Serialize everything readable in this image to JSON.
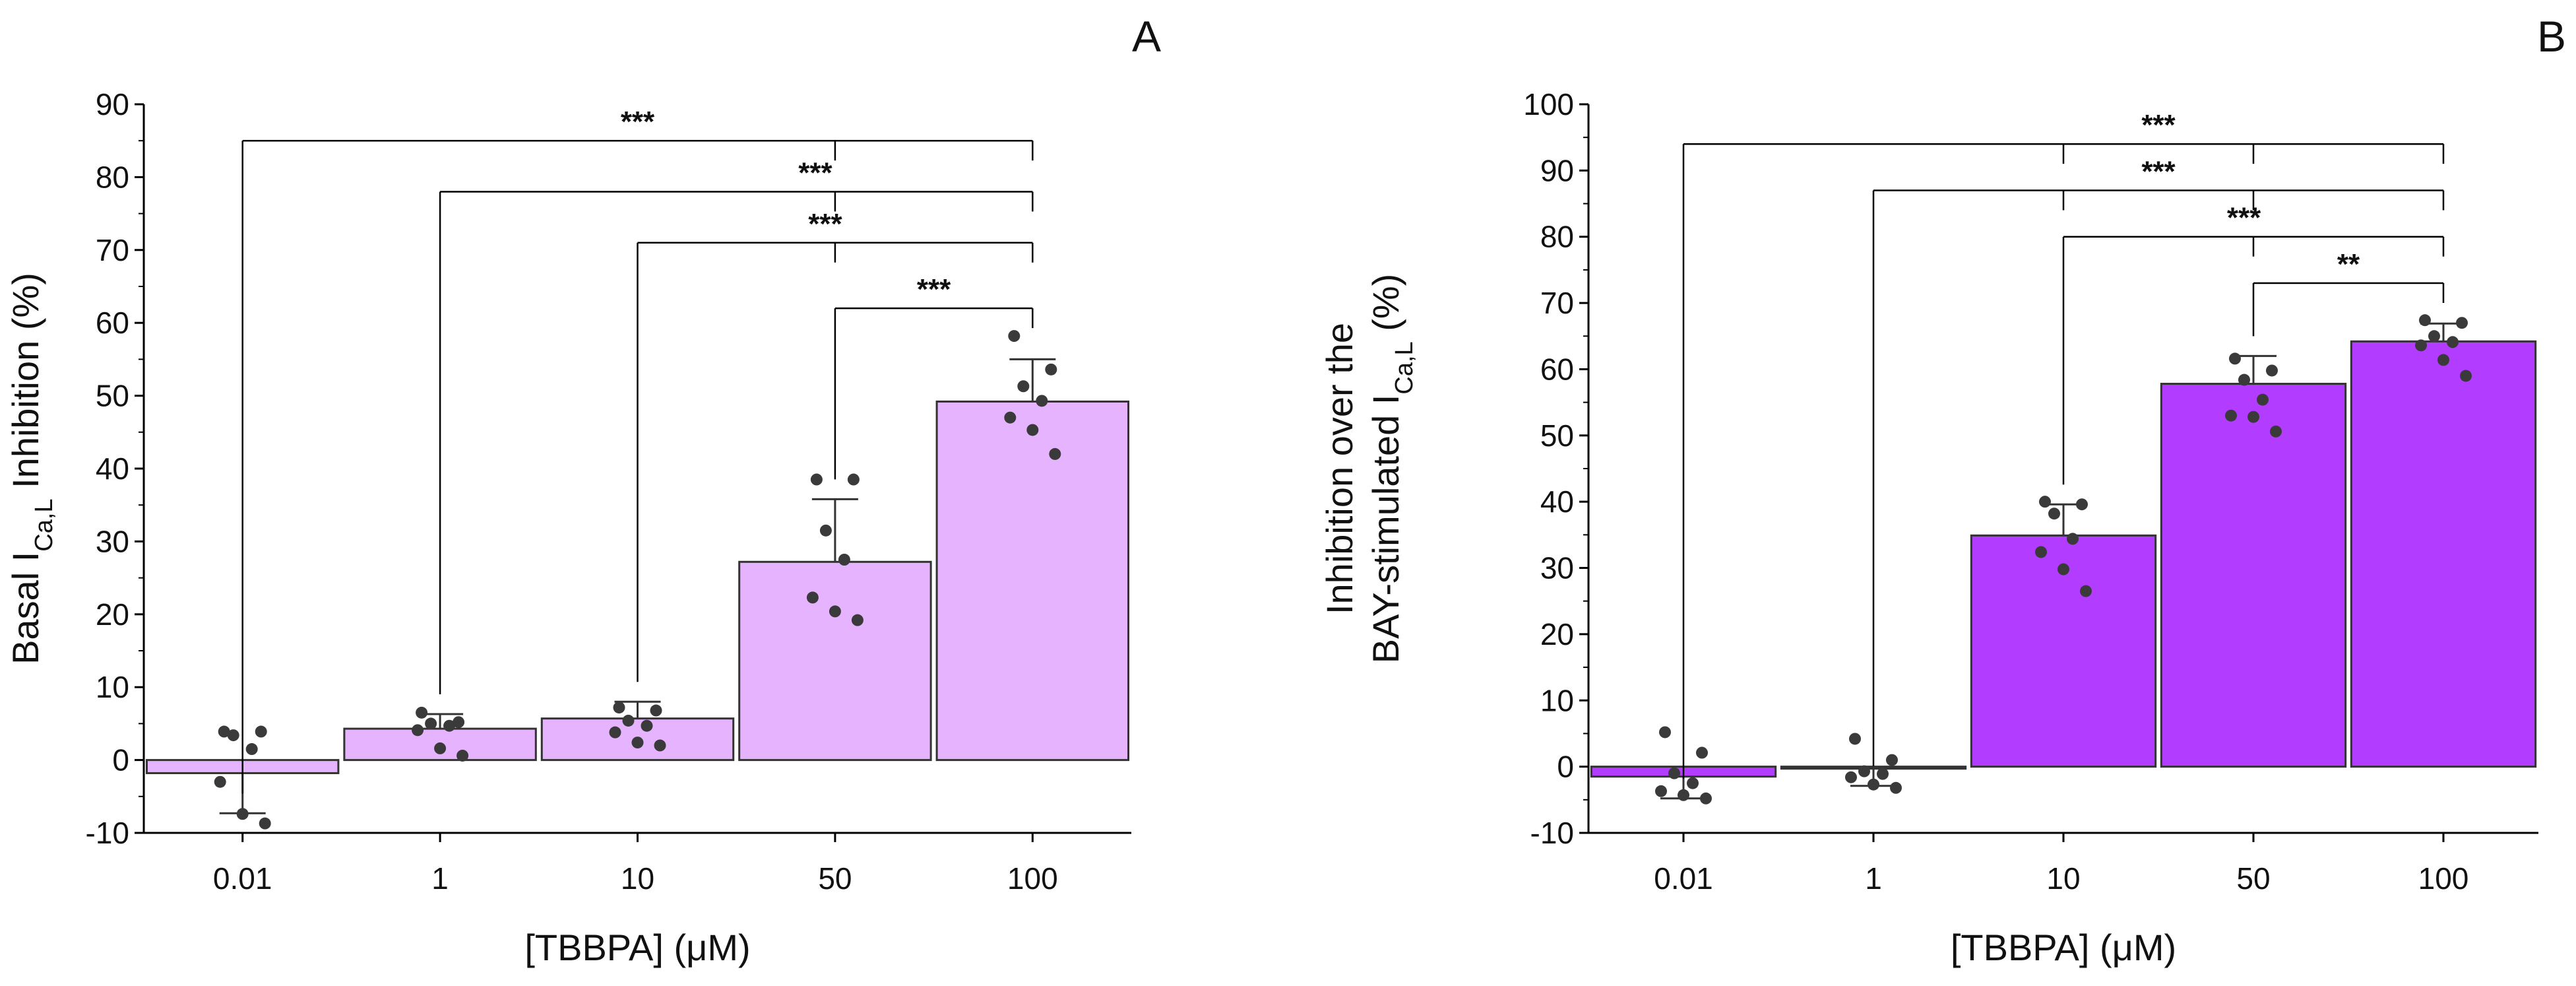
{
  "chart_data": [
    {
      "panel": "A",
      "type": "bar",
      "categories": [
        "0.01",
        "1",
        "10",
        "50",
        "100"
      ],
      "values": [
        -1.8,
        4.3,
        5.7,
        27.2,
        49.2
      ],
      "error_plus": [
        -7.3,
        6.3,
        8.0,
        35.8,
        55.0
      ],
      "points": [
        [
          3.9,
          3.9,
          3.4,
          1.5,
          -3.0,
          -7.4,
          -8.7
        ],
        [
          6.5,
          5.2,
          5.0,
          4.7,
          4.1,
          1.6,
          0.6
        ],
        [
          7.2,
          6.8,
          5.4,
          4.7,
          3.8,
          2.4,
          2.0
        ],
        [
          38.5,
          38.5,
          31.5,
          27.5,
          22.3,
          20.4,
          19.2
        ],
        [
          58.2,
          53.6,
          51.3,
          49.3,
          47.0,
          45.3,
          42.0
        ]
      ],
      "xlabel": "[TBBPA] (μM)",
      "ylabel": "Basal I",
      "ylabel_sub": "Ca,L",
      "ylabel_tail": " Inhibition (%)",
      "ylim": [
        -10,
        90
      ],
      "yticks": [
        "-10",
        "0",
        "10",
        "20",
        "30",
        "40",
        "50",
        "60",
        "70",
        "80",
        "90"
      ],
      "bar_color": "#e6b3ff",
      "significance": [
        {
          "from": 0,
          "to": 4,
          "mid": 3,
          "y": 85,
          "label": "***"
        },
        {
          "from": 1,
          "to": 4,
          "mid": 3,
          "y": 78,
          "label": "***"
        },
        {
          "from": 2,
          "to": 4,
          "mid": 3,
          "y": 71,
          "label": "***"
        },
        {
          "from": 3,
          "to": 4,
          "y": 62,
          "label": "***"
        }
      ]
    },
    {
      "panel": "B",
      "type": "bar",
      "categories": [
        "0.01",
        "1",
        "10",
        "50",
        "100"
      ],
      "values": [
        -1.5,
        -0.3,
        34.9,
        57.8,
        64.2
      ],
      "error_plus": [
        -4.8,
        -2.9,
        39.6,
        62.0,
        66.9
      ],
      "points": [
        [
          5.2,
          2.1,
          -1.0,
          -2.5,
          -3.7,
          -4.3,
          -4.8
        ],
        [
          4.2,
          1.0,
          -0.7,
          -1.1,
          -1.6,
          -2.7,
          -3.2
        ],
        [
          40.0,
          39.6,
          38.2,
          34.4,
          32.4,
          29.8,
          26.5
        ],
        [
          61.6,
          59.8,
          58.4,
          55.4,
          53.0,
          52.8,
          50.6
        ],
        [
          67.4,
          67.0,
          65.0,
          64.1,
          63.6,
          61.4,
          59.0
        ]
      ],
      "xlabel": "[TBBPA] (μM)",
      "ylabel_line1": "Inhibition over the",
      "ylabel_line2": "BAY-stimulated I",
      "ylabel_sub": "Ca,L",
      "ylabel_tail": " (%)",
      "ylim": [
        -10,
        100
      ],
      "yticks": [
        "-10",
        "0",
        "10",
        "20",
        "30",
        "40",
        "50",
        "60",
        "70",
        "80",
        "90",
        "100"
      ],
      "bar_color": "#b23cff",
      "significance": [
        {
          "from": 0,
          "to": 4,
          "mids": [
            2,
            3
          ],
          "y": 94,
          "label": "***"
        },
        {
          "from": 1,
          "to": 4,
          "mids": [
            2,
            3
          ],
          "y": 87,
          "label": "***"
        },
        {
          "from": 2,
          "to": 4,
          "mid": 3,
          "y": 80,
          "label": "***"
        },
        {
          "from": 3,
          "to": 4,
          "y": 73,
          "label": "**"
        }
      ]
    }
  ]
}
